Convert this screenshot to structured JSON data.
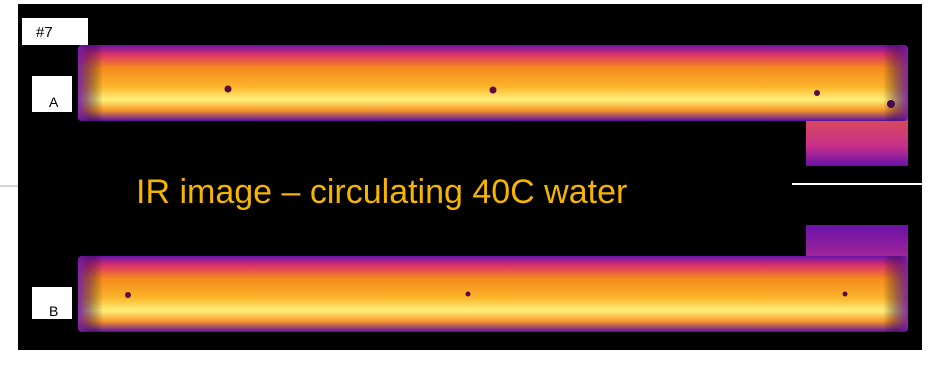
{
  "image": {
    "label": "#7",
    "panels": [
      {
        "label": "A"
      },
      {
        "label": "B"
      }
    ],
    "caption": "IR image – circulating 40C water"
  }
}
